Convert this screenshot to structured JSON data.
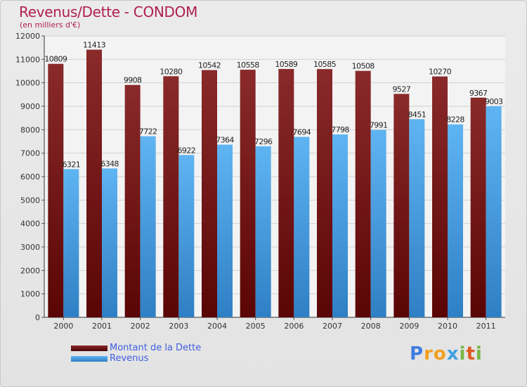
{
  "chart_data": {
    "type": "bar",
    "title": "Revenus/Dette - CONDOM",
    "subtitle": "(en milliers d'€)",
    "categories": [
      "2000",
      "2001",
      "2002",
      "2003",
      "2004",
      "2005",
      "2006",
      "2007",
      "2008",
      "2009",
      "2010",
      "2011"
    ],
    "series": [
      {
        "name": "Montant de la Dette",
        "color": "#7a1414",
        "values": [
          10809,
          11413,
          9908,
          10280,
          10542,
          10558,
          10589,
          10585,
          10508,
          9527,
          10270,
          9367
        ]
      },
      {
        "name": "Revenus",
        "color": "#4aa6ec",
        "values": [
          6321,
          6348,
          7722,
          6922,
          7364,
          7296,
          7694,
          7798,
          7991,
          8451,
          8228,
          9003
        ]
      }
    ],
    "ylim": [
      0,
      12000
    ],
    "yticks": [
      0,
      1000,
      2000,
      3000,
      4000,
      5000,
      6000,
      7000,
      8000,
      9000,
      10000,
      11000,
      12000
    ],
    "grid": true,
    "legend": "bottom-left"
  },
  "logo": {
    "text": "Proxiti"
  }
}
